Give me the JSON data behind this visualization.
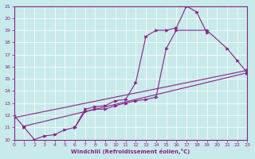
{
  "xlabel": "Windchill (Refroidissement éolien,°C)",
  "bg_color": "#c8eaea",
  "line_color": "#882288",
  "xmin": 0,
  "xmax": 23,
  "ymin": 10,
  "ymax": 21,
  "series": [
    {
      "x": [
        0,
        1,
        2,
        3,
        4,
        5,
        6,
        7,
        8,
        9,
        10,
        11,
        12,
        13,
        14,
        15,
        16,
        17,
        18,
        19
      ],
      "y": [
        12.0,
        11.0,
        10.0,
        10.3,
        10.4,
        10.8,
        11.0,
        12.5,
        12.7,
        12.8,
        13.2,
        13.3,
        14.7,
        18.5,
        19.0,
        19.0,
        19.2,
        21.0,
        20.5,
        18.8
      ]
    },
    {
      "x": [
        6,
        7,
        8,
        9,
        10,
        11,
        12,
        13,
        14,
        15,
        16,
        19,
        21,
        22,
        23
      ],
      "y": [
        11.0,
        12.3,
        12.5,
        12.5,
        12.8,
        13.0,
        13.2,
        13.3,
        13.5,
        17.5,
        19.0,
        19.0,
        17.5,
        16.5,
        15.5
      ]
    },
    {
      "x": [
        0,
        23
      ],
      "y": [
        11.8,
        15.7
      ]
    },
    {
      "x": [
        1,
        23
      ],
      "y": [
        11.1,
        15.5
      ]
    }
  ]
}
